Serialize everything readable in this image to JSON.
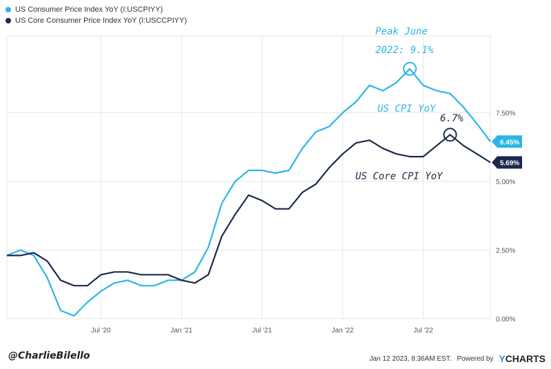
{
  "legend": [
    {
      "label": "US Consumer Price Index YoY (I:USCPIYY)",
      "color": "#2bb5e6"
    },
    {
      "label": "US Core Consumer Price Index YoY (I:USCCPIYY)",
      "color": "#1b2a4a"
    }
  ],
  "chart_data": {
    "type": "line",
    "x_tick_labels": [
      "Jul '20",
      "Jan '21",
      "Jul '21",
      "Jan '22",
      "Jul '22"
    ],
    "x_tick_dates": [
      "2020-07",
      "2021-01",
      "2021-07",
      "2022-01",
      "2022-07"
    ],
    "y_tick_labels": [
      "0.00%",
      "2.50%",
      "5.00%",
      "7.50%"
    ],
    "ylim": [
      0,
      10.3
    ],
    "grid": true,
    "legend_position": "top-left",
    "x": [
      "2019-12",
      "2020-01",
      "2020-02",
      "2020-03",
      "2020-04",
      "2020-05",
      "2020-06",
      "2020-07",
      "2020-08",
      "2020-09",
      "2020-10",
      "2020-11",
      "2020-12",
      "2021-01",
      "2021-02",
      "2021-03",
      "2021-04",
      "2021-05",
      "2021-06",
      "2021-07",
      "2021-08",
      "2021-09",
      "2021-10",
      "2021-11",
      "2021-12",
      "2022-01",
      "2022-02",
      "2022-03",
      "2022-04",
      "2022-05",
      "2022-06",
      "2022-07",
      "2022-08",
      "2022-09",
      "2022-10",
      "2022-11",
      "2022-12"
    ],
    "series": [
      {
        "name": "US Consumer Price Index YoY (I:USCPIYY)",
        "color": "#2bb5e6",
        "values": [
          2.3,
          2.5,
          2.3,
          1.5,
          0.3,
          0.1,
          0.6,
          1.0,
          1.3,
          1.4,
          1.2,
          1.2,
          1.4,
          1.4,
          1.7,
          2.6,
          4.2,
          5.0,
          5.4,
          5.4,
          5.3,
          5.4,
          6.2,
          6.8,
          7.0,
          7.5,
          7.9,
          8.5,
          8.3,
          8.6,
          9.1,
          8.5,
          8.3,
          8.2,
          7.7,
          7.1,
          6.45
        ]
      },
      {
        "name": "US Core Consumer Price Index YoY (I:USCCPIYY)",
        "color": "#1b2a4a",
        "values": [
          2.3,
          2.3,
          2.4,
          2.1,
          1.4,
          1.2,
          1.2,
          1.6,
          1.7,
          1.7,
          1.6,
          1.6,
          1.6,
          1.4,
          1.3,
          1.6,
          3.0,
          3.8,
          4.5,
          4.3,
          4.0,
          4.0,
          4.6,
          4.9,
          5.5,
          6.0,
          6.4,
          6.5,
          6.2,
          6.0,
          5.9,
          5.9,
          6.3,
          6.7,
          6.3,
          6.0,
          5.69
        ]
      }
    ],
    "end_labels": [
      {
        "text": "6.45%",
        "value": 6.45,
        "color": "#2bb5e6"
      },
      {
        "text": "5.69%",
        "value": 5.69,
        "color": "#1b2a4a"
      }
    ],
    "annotations": [
      {
        "text": "Peak June",
        "color": "#2bb5e6"
      },
      {
        "text": "2022: 9.1%",
        "color": "#2bb5e6"
      },
      {
        "text": "US CPI YoY",
        "color": "#2bb5e6"
      },
      {
        "text": "6.7%",
        "color": "#1b2a4a"
      },
      {
        "text": "US Core CPI YoY",
        "color": "#1b2a4a"
      }
    ],
    "circled_points": [
      {
        "series": 0,
        "x": "2022-06",
        "value": 9.1
      },
      {
        "series": 1,
        "x": "2022-09",
        "value": 6.7
      }
    ]
  },
  "footer": {
    "handle": "@CharlieBilello",
    "timestamp": "Jan 12 2023, 8:36AM EST.",
    "powered_by": "Powered by",
    "brand_y": "Y",
    "brand_rest": "CHARTS"
  }
}
